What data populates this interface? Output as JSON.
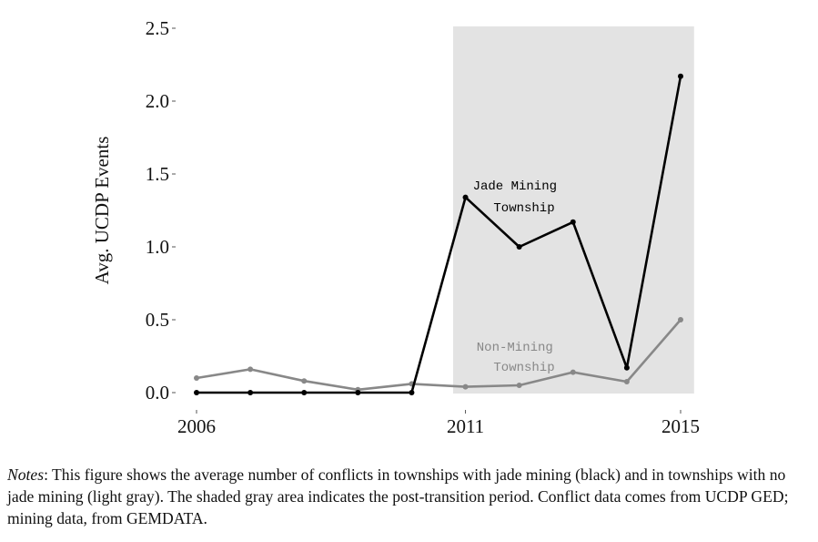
{
  "chart_data": {
    "type": "line",
    "title": "",
    "xlabel": "",
    "ylabel": "Avg. UCDP Events",
    "xlim": [
      2006,
      2015
    ],
    "ylim": [
      0,
      2.5
    ],
    "x": [
      2006,
      2007,
      2008,
      2009,
      2010,
      2011,
      2012,
      2013,
      2014,
      2015
    ],
    "x_ticks": [
      2006,
      2011,
      2015
    ],
    "x_tick_labels": [
      "2006",
      "2011",
      "2015"
    ],
    "y_ticks": [
      0,
      0.5,
      1,
      1.5,
      2,
      2.5
    ],
    "y_tick_labels": [
      "0.0",
      "0.5",
      "1.0",
      "1.5",
      "2.0",
      "2.5"
    ],
    "grid": false,
    "shaded_region": {
      "x_start": 2010.77,
      "x_end": 2015.25,
      "color": "#e3e3e3"
    },
    "series": [
      {
        "name": "Jade Mining Township",
        "color": "#000000",
        "values": [
          0,
          0,
          0,
          0,
          0,
          1.34,
          1.0,
          1.17,
          0.17,
          2.17
        ],
        "annotation": [
          "Jade Mining",
          "Township"
        ]
      },
      {
        "name": "Non-Mining Township",
        "color": "#888888",
        "values": [
          0.1,
          0.16,
          0.08,
          0.02,
          0.06,
          0.04,
          0.05,
          0.14,
          0.075,
          0.5
        ],
        "annotation": [
          "Non-Mining",
          "Township"
        ]
      }
    ]
  },
  "notes": {
    "label": "Notes",
    "text": ": This figure shows the average number of conflicts in townships with jade mining (black) and in townships with no jade mining (light gray).  The shaded gray area indicates the post-transition period. Conflict data comes from UCDP GED; mining data, from GEMDATA."
  }
}
